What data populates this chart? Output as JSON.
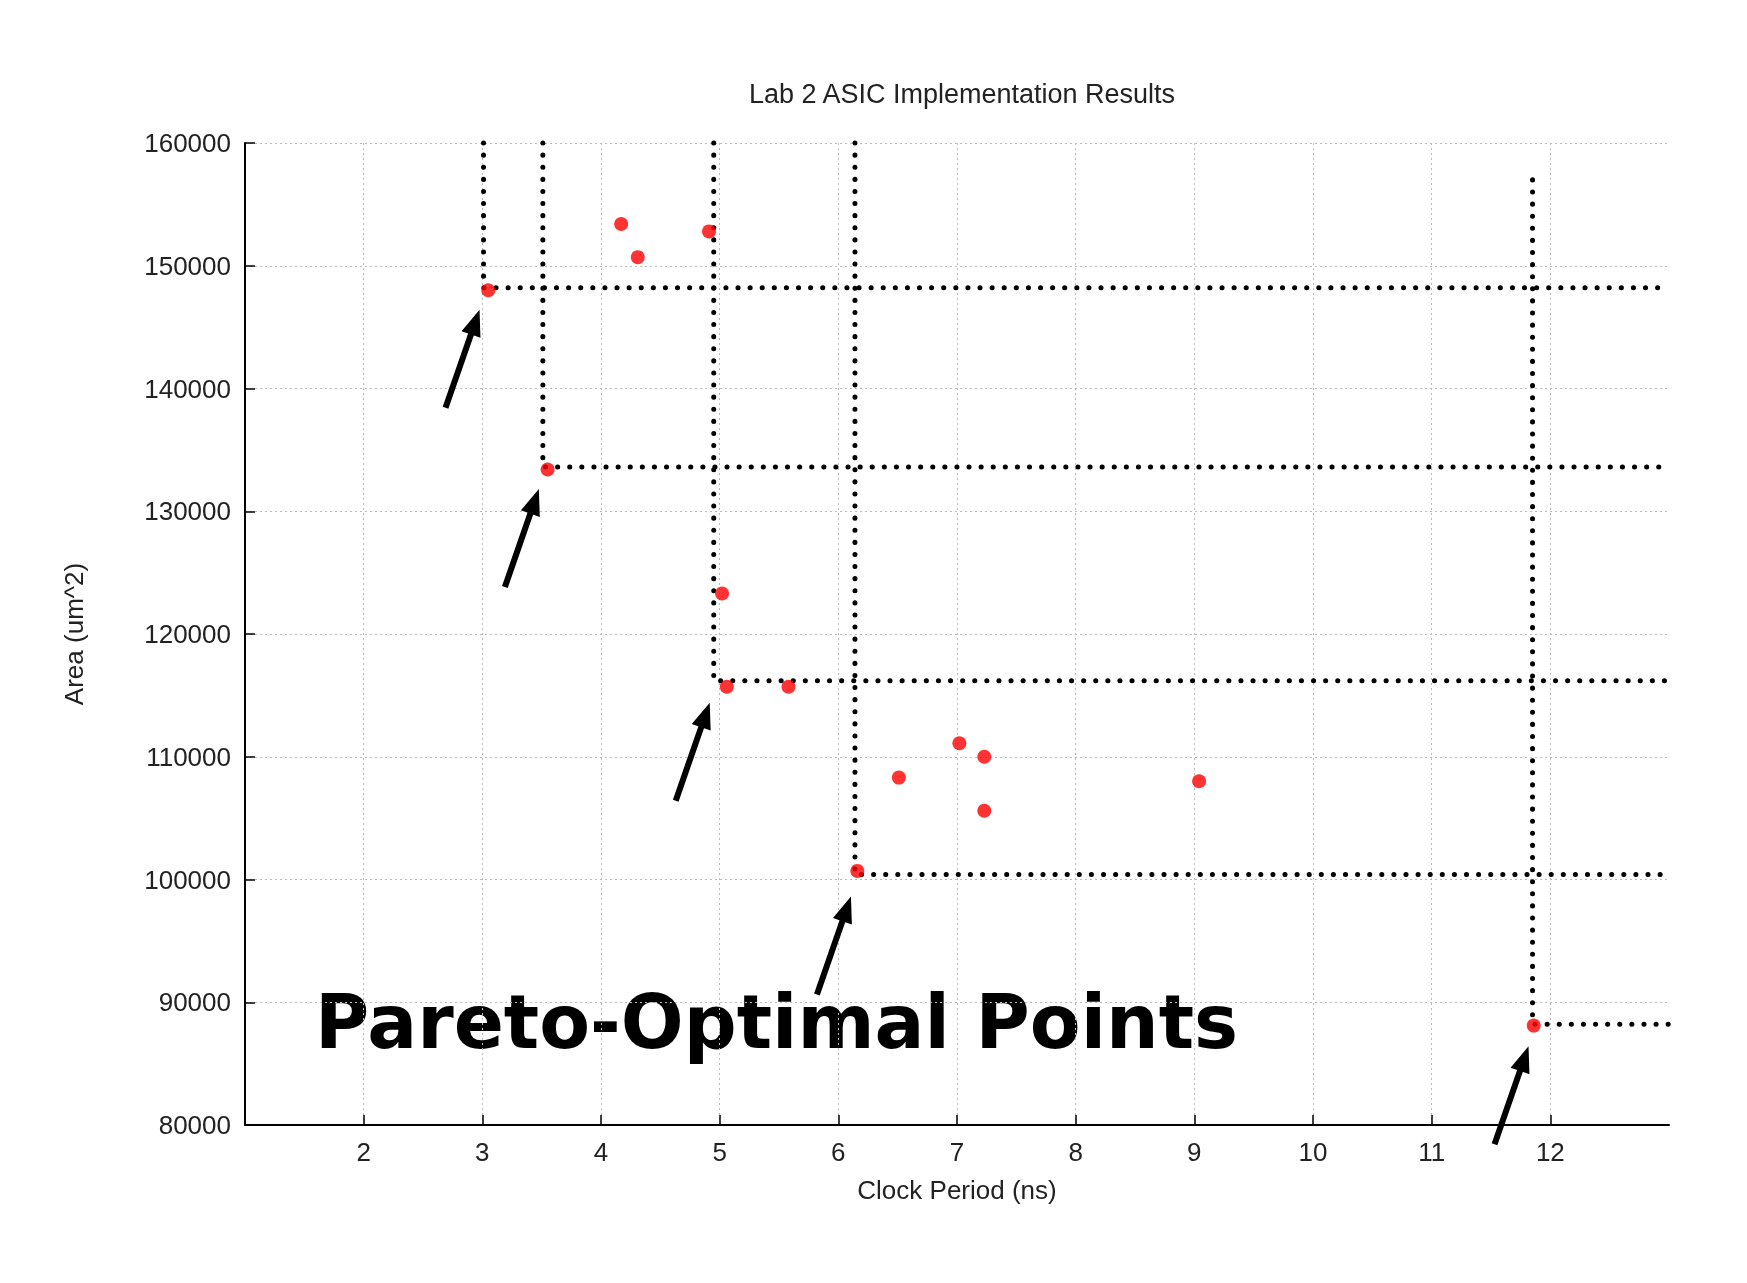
{
  "chart_data": {
    "type": "scatter",
    "title": "Lab 2 ASIC Implementation Results",
    "xlabel": "Clock Period (ns)",
    "ylabel": "Area (um^2)",
    "annotations": [
      "Pareto-Optimal Points"
    ],
    "xlim": [
      1,
      13
    ],
    "xticks": [
      2,
      3,
      4,
      5,
      6,
      7,
      8,
      9,
      10,
      11,
      12
    ],
    "ylim": [
      80000,
      160000
    ],
    "yticks": [
      80000,
      90000,
      100000,
      110000,
      120000,
      130000,
      140000,
      150000,
      160000
    ],
    "grid": true,
    "marker": "circle",
    "series": [
      {
        "color": "#ff0000",
        "x": [
          3.05,
          3.55,
          4.17,
          4.31,
          4.91,
          5.02,
          5.06,
          5.58,
          6.16,
          6.51,
          7.02,
          7.23,
          7.23,
          9.04,
          11.86
        ],
        "values": [
          148000,
          133400,
          153400,
          150700,
          152800,
          123300,
          115700,
          115700,
          100700,
          108300,
          111100,
          110000,
          105600,
          108000,
          88100
        ]
      },
      {
        "type": "line",
        "line_style": "dotted",
        "marker": "none",
        "color": "#000000",
        "x": [
          3.01,
          3.01,
          13
        ],
        "values": [
          160000,
          148200,
          148200
        ]
      },
      {
        "type": "line",
        "line_style": "dotted",
        "marker": "none",
        "color": "#000000",
        "x": [
          3.51,
          3.51,
          13
        ],
        "values": [
          160000,
          133600,
          133600
        ]
      },
      {
        "type": "line",
        "line_style": "dotted",
        "marker": "none",
        "color": "#000000",
        "x": [
          4.95,
          4.95,
          13
        ],
        "values": [
          160000,
          116200,
          116200
        ]
      },
      {
        "type": "line",
        "line_style": "dotted",
        "marker": "none",
        "color": "#000000",
        "x": [
          6.14,
          6.14,
          13
        ],
        "values": [
          160000,
          100400,
          100400
        ]
      },
      {
        "type": "line",
        "line_style": "dotted",
        "marker": "none",
        "color": "#000000",
        "x": [
          11.85,
          11.85,
          13
        ],
        "values": [
          157000,
          88200,
          88200
        ]
      }
    ]
  }
}
